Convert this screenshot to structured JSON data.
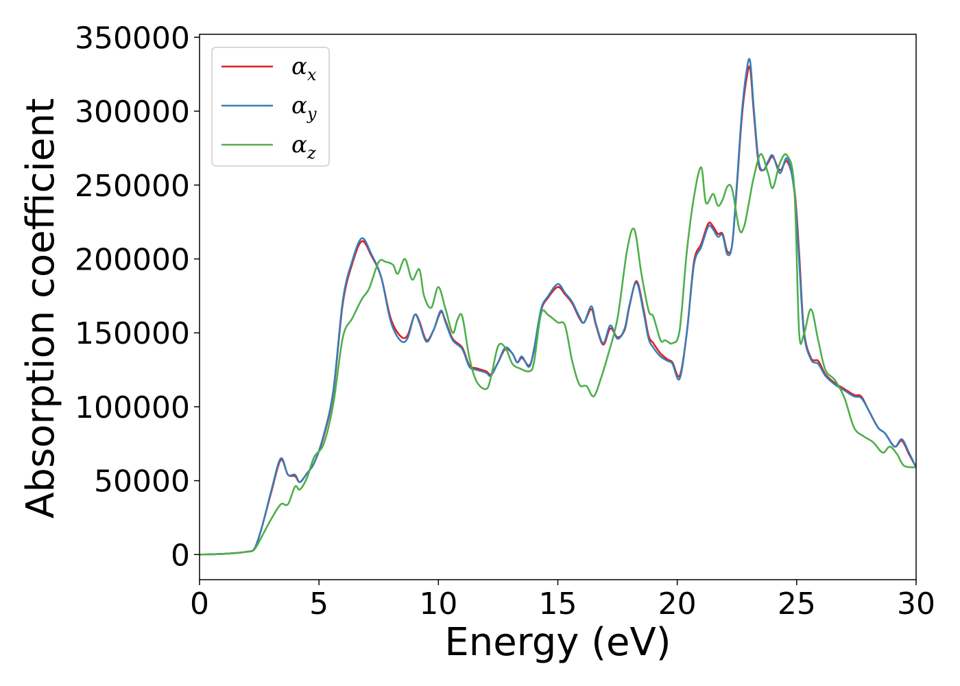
{
  "chart_data": {
    "type": "line",
    "xlabel": "Energy (eV)",
    "ylabel": "Absorption coefficient",
    "xlim": [
      0,
      30
    ],
    "ylim": [
      -17000,
      352000
    ],
    "xticks": [
      0,
      5,
      10,
      15,
      20,
      25,
      30
    ],
    "yticks": [
      0,
      50000,
      100000,
      150000,
      200000,
      250000,
      300000,
      350000
    ],
    "grid": false,
    "legend_position": "top-left",
    "series": [
      {
        "name": "α_x",
        "label_main": "α",
        "label_sub": "x",
        "color": "#e41a1c",
        "x": [
          0,
          1,
          1.5,
          2,
          2.3,
          2.6,
          3,
          3.4,
          3.7,
          4.0,
          4.2,
          4.5,
          4.8,
          5.2,
          5.6,
          6.0,
          6.4,
          6.8,
          7.2,
          7.6,
          8.0,
          8.4,
          8.7,
          9.0,
          9.2,
          9.5,
          9.8,
          10.1,
          10.3,
          10.6,
          11.0,
          11.3,
          11.6,
          12.0,
          12.2,
          12.5,
          12.8,
          13.1,
          13.3,
          13.5,
          13.8,
          14.0,
          14.3,
          14.6,
          15.0,
          15.3,
          15.6,
          15.9,
          16.1,
          16.4,
          16.6,
          16.9,
          17.2,
          17.5,
          17.8,
          18.0,
          18.3,
          18.6,
          18.8,
          19.0,
          19.3,
          19.6,
          19.8,
          20.1,
          20.4,
          20.7,
          21.0,
          21.3,
          21.5,
          21.7,
          21.9,
          22.1,
          22.3,
          22.5,
          22.7,
          22.9,
          23.05,
          23.2,
          23.4,
          23.6,
          23.8,
          24.0,
          24.3,
          24.6,
          24.9,
          25.1,
          25.3,
          25.6,
          25.9,
          26.2,
          26.6,
          27.0,
          27.4,
          27.7,
          28.0,
          28.4,
          28.7,
          29.1,
          29.4,
          29.7,
          30.0
        ],
        "values": [
          0,
          500,
          1000,
          2000,
          4000,
          18000,
          42000,
          64000,
          54000,
          53000,
          49000,
          55000,
          62000,
          80000,
          110000,
          170000,
          197000,
          212000,
          202000,
          188000,
          160000,
          148000,
          148000,
          162000,
          158000,
          145000,
          152000,
          164000,
          158000,
          146000,
          140000,
          128000,
          126000,
          124000,
          122000,
          130000,
          139000,
          136000,
          130000,
          133000,
          128000,
          138000,
          165000,
          174000,
          181000,
          176000,
          170000,
          160000,
          157000,
          166000,
          155000,
          142000,
          153000,
          147000,
          152000,
          168000,
          185000,
          165000,
          148000,
          143000,
          136000,
          132000,
          130000,
          121000,
          150000,
          198000,
          210000,
          224000,
          222000,
          217000,
          217000,
          205000,
          210000,
          250000,
          295000,
          322000,
          329000,
          300000,
          265000,
          260000,
          265000,
          269000,
          260000,
          266000,
          248000,
          205000,
          152000,
          133000,
          131000,
          122000,
          116000,
          112000,
          108000,
          107000,
          98000,
          86000,
          82000,
          73000,
          77000,
          68000,
          59000
        ]
      },
      {
        "name": "α_y",
        "label_main": "α",
        "label_sub": "y",
        "color": "#377eb8",
        "x": [
          0,
          1,
          1.5,
          2,
          2.3,
          2.6,
          3,
          3.4,
          3.7,
          4.0,
          4.2,
          4.5,
          4.8,
          5.2,
          5.6,
          6.0,
          6.4,
          6.8,
          7.2,
          7.6,
          8.0,
          8.4,
          8.7,
          9.0,
          9.2,
          9.5,
          9.8,
          10.1,
          10.3,
          10.6,
          11.0,
          11.3,
          11.6,
          12.0,
          12.2,
          12.5,
          12.8,
          13.1,
          13.3,
          13.5,
          13.8,
          14.0,
          14.3,
          14.6,
          15.0,
          15.3,
          15.6,
          15.9,
          16.1,
          16.4,
          16.6,
          16.9,
          17.2,
          17.5,
          17.8,
          18.0,
          18.3,
          18.6,
          18.8,
          19.0,
          19.3,
          19.6,
          19.8,
          20.1,
          20.4,
          20.7,
          21.0,
          21.3,
          21.5,
          21.7,
          21.9,
          22.1,
          22.3,
          22.5,
          22.7,
          22.9,
          23.05,
          23.2,
          23.4,
          23.6,
          23.8,
          24.0,
          24.3,
          24.6,
          24.9,
          25.1,
          25.3,
          25.6,
          25.9,
          26.2,
          26.6,
          27.0,
          27.4,
          27.7,
          28.0,
          28.4,
          28.7,
          29.1,
          29.4,
          29.7,
          30.0
        ],
        "values": [
          0,
          500,
          1000,
          2000,
          4000,
          18000,
          43000,
          65000,
          54000,
          54000,
          49000,
          55000,
          62000,
          81000,
          111000,
          172000,
          199000,
          214000,
          203000,
          188000,
          158000,
          145000,
          146000,
          162000,
          157000,
          144000,
          152000,
          165000,
          157000,
          145000,
          139000,
          127000,
          125000,
          123000,
          121000,
          130000,
          140000,
          136000,
          130000,
          134000,
          127000,
          139000,
          166000,
          175000,
          183000,
          177000,
          171000,
          161000,
          157000,
          168000,
          156000,
          143000,
          155000,
          146000,
          153000,
          169000,
          184000,
          163000,
          146000,
          140000,
          134000,
          131000,
          129000,
          119000,
          150000,
          196000,
          208000,
          222000,
          220000,
          215000,
          216000,
          203000,
          210000,
          252000,
          298000,
          327000,
          334000,
          303000,
          267000,
          260000,
          266000,
          270000,
          258000,
          268000,
          246000,
          200000,
          150000,
          132000,
          129000,
          121000,
          115000,
          111000,
          107000,
          106000,
          98000,
          86000,
          82000,
          73000,
          78000,
          69000,
          59000
        ]
      },
      {
        "name": "α_z",
        "label_main": "α",
        "label_sub": "z",
        "color": "#4daf4a",
        "x": [
          0,
          1,
          1.5,
          2,
          2.3,
          2.6,
          3,
          3.4,
          3.7,
          4.0,
          4.2,
          4.5,
          4.8,
          5.2,
          5.6,
          6.0,
          6.4,
          6.8,
          7.1,
          7.5,
          7.8,
          8.1,
          8.3,
          8.6,
          8.9,
          9.2,
          9.4,
          9.7,
          10.0,
          10.3,
          10.6,
          10.8,
          11.0,
          11.3,
          11.6,
          12.0,
          12.2,
          12.5,
          12.8,
          13.1,
          13.4,
          13.8,
          14.0,
          14.3,
          14.6,
          15.0,
          15.3,
          15.6,
          15.9,
          16.2,
          16.5,
          16.8,
          17.1,
          17.5,
          17.9,
          18.2,
          18.5,
          18.8,
          19.0,
          19.3,
          19.5,
          19.8,
          20.1,
          20.4,
          20.7,
          21.0,
          21.2,
          21.5,
          21.7,
          21.9,
          22.1,
          22.3,
          22.6,
          22.8,
          23.0,
          23.2,
          23.5,
          23.8,
          24.0,
          24.3,
          24.6,
          24.9,
          25.1,
          25.3,
          25.6,
          25.9,
          26.2,
          26.6,
          27.0,
          27.4,
          27.8,
          28.2,
          28.6,
          28.9,
          29.2,
          29.5,
          30.0
        ],
        "values": [
          0,
          500,
          1000,
          2000,
          3500,
          12000,
          24000,
          34000,
          34000,
          46000,
          44000,
          52000,
          66000,
          75000,
          102000,
          147000,
          160000,
          173000,
          180000,
          198000,
          198000,
          196000,
          190000,
          200000,
          186000,
          193000,
          175000,
          167000,
          181000,
          166000,
          150000,
          159000,
          161000,
          133000,
          117000,
          112000,
          120000,
          141000,
          140000,
          129000,
          126000,
          124000,
          130000,
          163000,
          162000,
          157000,
          155000,
          131000,
          115000,
          114000,
          107000,
          119000,
          135000,
          160000,
          206000,
          220000,
          190000,
          165000,
          161000,
          145000,
          145000,
          143000,
          152000,
          205000,
          242000,
          262000,
          238000,
          244000,
          236000,
          240000,
          249000,
          247000,
          220000,
          222000,
          238000,
          255000,
          271000,
          258000,
          248000,
          265000,
          270000,
          248000,
          151000,
          149000,
          166000,
          145000,
          125000,
          118000,
          106000,
          86000,
          80000,
          76000,
          69000,
          73000,
          68000,
          60000,
          59000
        ]
      }
    ]
  }
}
